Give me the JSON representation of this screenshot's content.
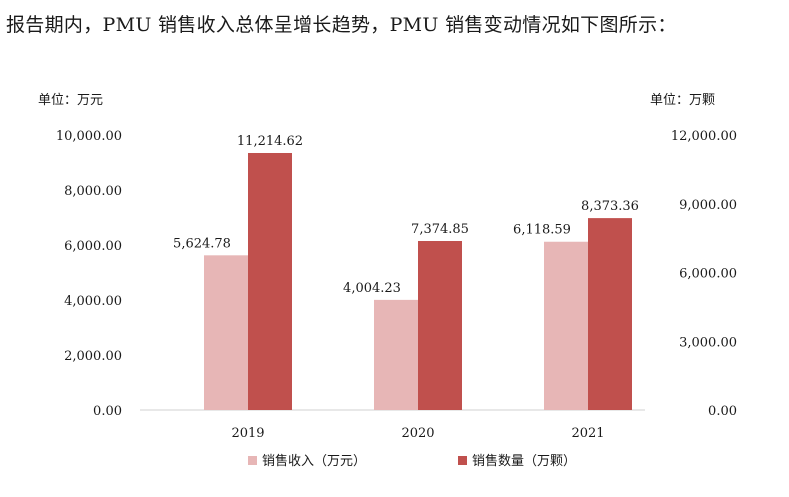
{
  "heading": "报告期内，PMU 销售收入总体呈增长趋势，PMU 销售变动情况如下图所示：",
  "chart_data": {
    "type": "bar",
    "title": "",
    "categories": [
      "2019",
      "2020",
      "2021"
    ],
    "left_axis": {
      "unit_label": "单位：万元",
      "ylim": [
        0,
        10000
      ],
      "ticks": [
        0,
        2000,
        4000,
        6000,
        8000,
        10000
      ],
      "tick_labels": [
        "0.00",
        "2,000.00",
        "4,000.00",
        "6,000.00",
        "8,000.00",
        "10,000.00"
      ]
    },
    "right_axis": {
      "unit_label": "单位：万颗",
      "ylim": [
        0,
        12000
      ],
      "ticks": [
        0,
        3000,
        6000,
        9000,
        12000
      ],
      "tick_labels": [
        "0.00",
        "3,000.00",
        "6,000.00",
        "9,000.00",
        "12,000.00"
      ]
    },
    "series": [
      {
        "name": "销售收入（万元）",
        "axis": "left",
        "color": "#e7b6b6",
        "values": [
          5624.78,
          4004.23,
          6118.59
        ],
        "value_labels": [
          "5,624.78",
          "4,004.23",
          "6,118.59"
        ]
      },
      {
        "name": "销售数量（万颗）",
        "axis": "right",
        "color": "#c0504d",
        "values": [
          11214.62,
          7374.85,
          8373.36
        ],
        "value_labels": [
          "11,214.62",
          "7,374.85",
          "8,373.36"
        ]
      }
    ],
    "grid": false,
    "legend_position": "bottom"
  }
}
